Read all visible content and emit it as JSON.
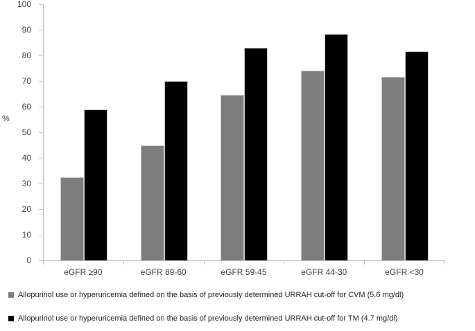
{
  "chart_data": {
    "type": "bar",
    "title": "",
    "xlabel": "",
    "ylabel": "%",
    "ylim": [
      0,
      100
    ],
    "y_ticks": [
      0,
      10,
      20,
      30,
      40,
      50,
      60,
      70,
      80,
      90,
      100
    ],
    "grid": false,
    "legend_position": "bottom",
    "axis_color": "#bfbfbf",
    "tick_label_color": "#3f3f3f",
    "categories": [
      "eGFR ≥90",
      "eGFR 89-60",
      "eGFR 59-45",
      "eGFR 44-30",
      "eGFR <30"
    ],
    "series": [
      {
        "name": "Allopurinol use or hyperuricemia defined on the basis of previously determined URRAH cut-off for CVM (5.6 mg/dl)",
        "color": "#7d7d7d",
        "values": [
          32.5,
          45,
          64.5,
          74,
          71.5
        ]
      },
      {
        "name": "Allopurinol use or hyperuricemia defined on the basis of previously determined URRAH cut-off for TM (4.7 mg/dl)",
        "color": "#000000",
        "values": [
          59,
          70,
          83,
          88.5,
          81.5
        ]
      }
    ]
  }
}
